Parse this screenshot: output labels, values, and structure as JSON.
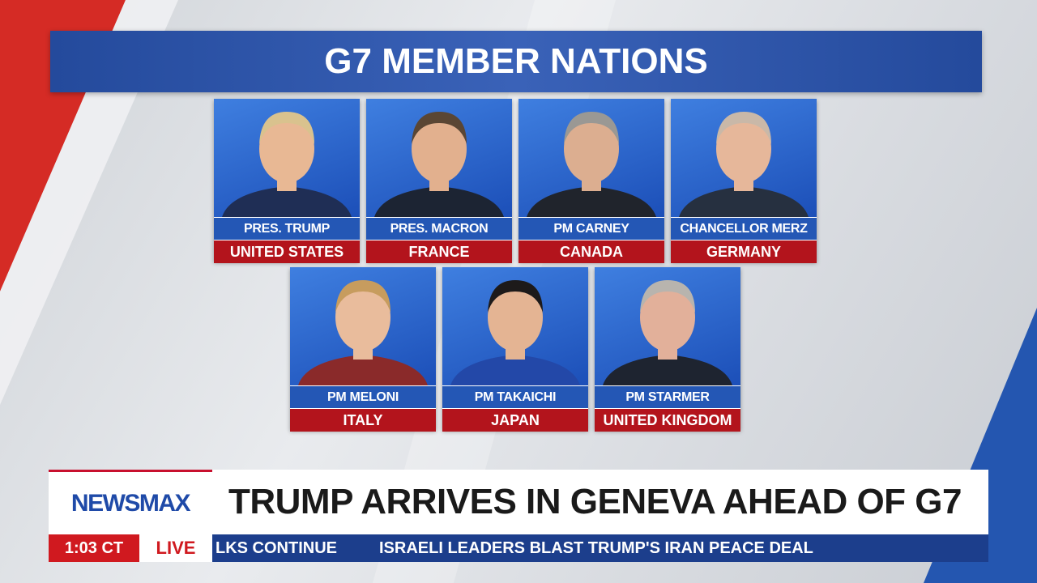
{
  "header": {
    "title": "G7 MEMBER NATIONS"
  },
  "leaders": [
    {
      "title": "PRES. TRUMP",
      "country": "UNITED STATES"
    },
    {
      "title": "PRES. MACRON",
      "country": "FRANCE"
    },
    {
      "title": "PM CARNEY",
      "country": "CANADA"
    },
    {
      "title": "CHANCELLOR MERZ",
      "country": "GERMANY"
    },
    {
      "title": "PM MELONI",
      "country": "ITALY"
    },
    {
      "title": "PM TAKAICHI",
      "country": "JAPAN"
    },
    {
      "title": "PM STARMER",
      "country": "UNITED KINGDOM"
    }
  ],
  "lower_third": {
    "brand": "NEWSMAX",
    "headline": "TRUMP ARRIVES IN GENEVA AHEAD OF G7",
    "time": "1:03 CT",
    "live": "LIVE",
    "ticker": [
      "LKS CONTINUE",
      "ISRAELI LEADERS BLAST TRUMP'S IRAN PEACE DEAL"
    ]
  }
}
